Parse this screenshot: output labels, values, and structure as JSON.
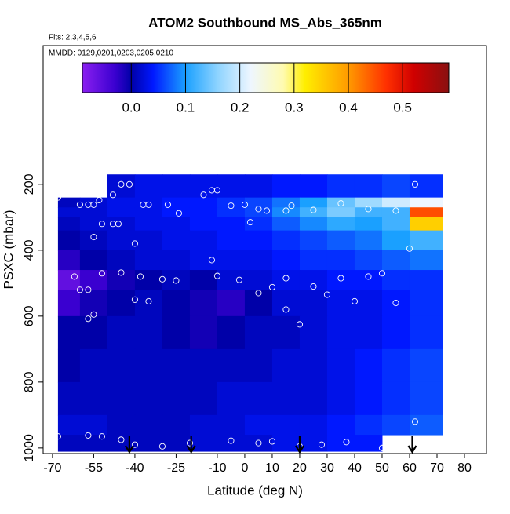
{
  "chart_data": {
    "type": "heatmap",
    "title": "ATOM2 Southbound MS_Abs_365nm",
    "subtitles": [
      "Flts: 2,3,4,5,6",
      "MMDD: 0129,0201,0203,0205,0210"
    ],
    "x_label": "Latitude (deg N)",
    "y_label": "PSXC (mbar)",
    "xlim": [
      -73.4,
      88
    ],
    "ylim": [
      -221,
      1017
    ],
    "xticks": [
      -70,
      -55,
      -40,
      -25,
      -10,
      0,
      10,
      20,
      30,
      40,
      50,
      60,
      70,
      80
    ],
    "yticks": [
      200,
      400,
      600,
      800,
      1000
    ],
    "colorbar_lim": [
      -0.09,
      0.585
    ],
    "colorbar_ticks": [
      {
        "value": 0,
        "label": "0.0"
      },
      0.1,
      0.2,
      0.3,
      0.4,
      0.5
    ],
    "colorscale": [
      [
        -0.09,
        "#8a1ff0"
      ],
      [
        -0.03,
        "#3a00d0"
      ],
      [
        0.0,
        "#0000a8"
      ],
      [
        0.04,
        "#0018ff"
      ],
      [
        0.1,
        "#1aa0ff"
      ],
      [
        0.16,
        "#8fd4ff"
      ],
      [
        0.22,
        "#eef6ff"
      ],
      [
        0.28,
        "#fffbb0"
      ],
      [
        0.32,
        "#ffee00"
      ],
      [
        0.4,
        "#ff9a00"
      ],
      [
        0.47,
        "#ff3000"
      ],
      [
        0.52,
        "#d00000"
      ],
      [
        0.585,
        "#8a1010"
      ]
    ],
    "heatmap": {
      "x_edges": [
        -68,
        -60,
        -50,
        -40,
        -30,
        -20,
        -10,
        0,
        10,
        20,
        30,
        40,
        50,
        60,
        72
      ],
      "y_edges": [
        170,
        240,
        270,
        300,
        340,
        400,
        460,
        520,
        600,
        700,
        800,
        900,
        960,
        1010
      ],
      "values": [
        [
          null,
          null,
          0.02,
          0.03,
          0.03,
          0.03,
          0.03,
          0.03,
          0.04,
          0.04,
          0.05,
          0.05,
          0.06,
          0.05
        ],
        [
          0.01,
          0.02,
          0.03,
          0.03,
          0.04,
          0.04,
          0.05,
          0.06,
          0.08,
          0.1,
          0.14,
          0.17,
          0.2,
          0.22
        ],
        [
          0.02,
          0.02,
          0.03,
          0.03,
          0.04,
          0.04,
          0.05,
          0.06,
          0.09,
          0.12,
          0.15,
          0.12,
          0.12,
          0.45
        ],
        [
          0.01,
          0.02,
          0.02,
          0.03,
          0.03,
          0.04,
          0.04,
          0.05,
          0.07,
          0.09,
          0.11,
          0.1,
          0.12,
          0.35
        ],
        [
          0,
          0.01,
          0.02,
          0.02,
          0.03,
          0.03,
          0.04,
          0.04,
          0.05,
          0.06,
          0.07,
          0.08,
          0.1,
          0.12
        ],
        [
          -0.02,
          0,
          0.01,
          0.02,
          0.02,
          0.03,
          0.03,
          0.03,
          0.04,
          0.05,
          0.05,
          0.06,
          0.07,
          0.08
        ],
        [
          -0.06,
          -0.03,
          -0.01,
          0,
          0.01,
          0,
          0.02,
          0.02,
          0.03,
          0.03,
          0.04,
          0.04,
          0.05,
          0.05
        ],
        [
          -0.03,
          -0.01,
          0,
          0.01,
          0,
          -0.01,
          -0.02,
          0,
          0.02,
          0.02,
          0.03,
          0.03,
          0.04,
          0.05
        ],
        [
          0,
          0,
          0.01,
          0.01,
          0,
          -0.01,
          0,
          0.01,
          0.01,
          0.02,
          0.03,
          0.03,
          0.04,
          0.05
        ],
        [
          0,
          0.01,
          0.01,
          0.01,
          0.01,
          0.01,
          0.01,
          0.01,
          0.02,
          0.02,
          0.03,
          0.04,
          0.05,
          0.06
        ],
        [
          0.01,
          0.01,
          0.01,
          0.01,
          0.01,
          0.01,
          0.02,
          0.02,
          0.02,
          0.02,
          0.03,
          0.04,
          0.05,
          0.06
        ],
        [
          0.02,
          0.02,
          0.01,
          0.01,
          0.01,
          0.02,
          0.02,
          0.03,
          0.03,
          0.03,
          0.04,
          0.05,
          0.06,
          0.07
        ],
        [
          0.01,
          0.01,
          0.01,
          0.01,
          0.01,
          0.02,
          0.02,
          0.02,
          0.03,
          0.03,
          0.04,
          0.04,
          null,
          null
        ]
      ]
    },
    "points": {
      "color": "#ffffff",
      "x": [
        -68,
        -60,
        -57,
        -55,
        -53,
        -52,
        -48,
        -45,
        -42,
        -37,
        -35,
        -28,
        -24,
        -15,
        -12,
        -10,
        -5,
        0,
        2,
        5,
        8,
        15,
        17,
        25,
        35,
        45,
        55,
        62,
        -52,
        -48,
        -46,
        -40,
        -55,
        -52,
        -45,
        -38,
        -30,
        -25,
        -10,
        -2,
        10,
        15,
        25,
        35,
        45,
        50,
        -62,
        -60,
        -57,
        -40,
        -35,
        5,
        15,
        30,
        40,
        55,
        -57,
        -55,
        20,
        -12,
        60,
        -68,
        -57,
        -52,
        -45,
        -40,
        -30,
        -20,
        -5,
        5,
        10,
        20,
        28,
        37,
        50,
        62
      ],
      "y": [
        240,
        262,
        262,
        262,
        248,
        230,
        232,
        200,
        200,
        262,
        262,
        262,
        288,
        232,
        218,
        218,
        265,
        262,
        315,
        275,
        280,
        280,
        265,
        278,
        258,
        275,
        280,
        200,
        320,
        320,
        320,
        380,
        360,
        470,
        468,
        480,
        488,
        492,
        478,
        490,
        512,
        485,
        510,
        485,
        480,
        470,
        480,
        520,
        520,
        550,
        555,
        530,
        580,
        535,
        555,
        560,
        608,
        595,
        625,
        430,
        395,
        965,
        962,
        965,
        975,
        990,
        995,
        985,
        978,
        985,
        980,
        995,
        990,
        982,
        1000,
        920
      ]
    },
    "arrows_x": [
      -42,
      -19.5,
      20,
      61
    ]
  }
}
